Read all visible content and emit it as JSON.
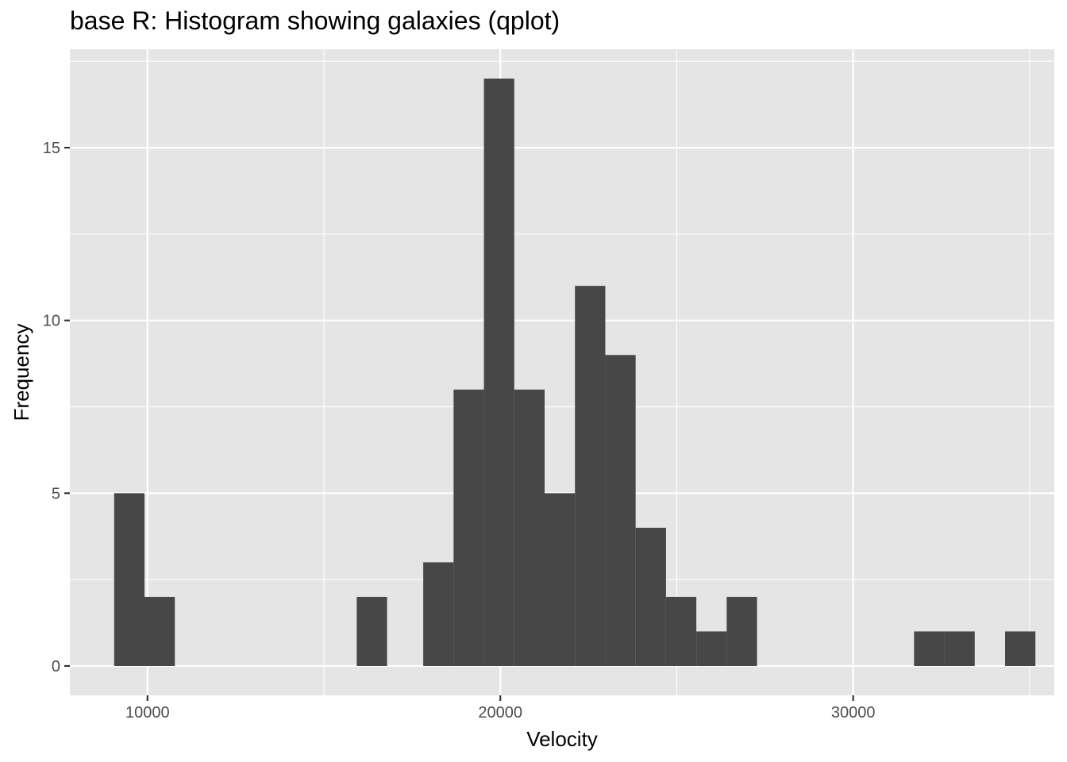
{
  "chart_data": {
    "type": "bar",
    "subtype": "histogram",
    "title": "base R: Histogram showing galaxies (qplot)",
    "xlabel": "Velocity",
    "ylabel": "Frequency",
    "xlim": [
      7800,
      35700
    ],
    "ylim": [
      -0.85,
      17.85
    ],
    "x_ticks": [
      10000,
      20000,
      30000
    ],
    "y_ticks": [
      0,
      5,
      10,
      15
    ],
    "grid": true,
    "legend": "none",
    "colors": {
      "panel_background": "#e5e5e5",
      "grid": "#ffffff",
      "bar_fill": "#474747",
      "tick_label": "#4d4d4d",
      "tick_mark": "#333333"
    },
    "bins": [
      {
        "x0": 9055,
        "x1": 9915,
        "count": 5
      },
      {
        "x0": 9915,
        "x1": 10775,
        "count": 2
      },
      {
        "x0": 15930,
        "x1": 16790,
        "count": 2
      },
      {
        "x0": 17815,
        "x1": 18675,
        "count": 3
      },
      {
        "x0": 18675,
        "x1": 19535,
        "count": 8
      },
      {
        "x0": 19535,
        "x1": 20395,
        "count": 17
      },
      {
        "x0": 20395,
        "x1": 21255,
        "count": 8
      },
      {
        "x0": 21255,
        "x1": 22115,
        "count": 5
      },
      {
        "x0": 22115,
        "x1": 22975,
        "count": 11
      },
      {
        "x0": 22975,
        "x1": 23835,
        "count": 9
      },
      {
        "x0": 23835,
        "x1": 24695,
        "count": 4
      },
      {
        "x0": 24695,
        "x1": 25555,
        "count": 2
      },
      {
        "x0": 25555,
        "x1": 26415,
        "count": 1
      },
      {
        "x0": 26415,
        "x1": 27275,
        "count": 2
      },
      {
        "x0": 31725,
        "x1": 32585,
        "count": 1
      },
      {
        "x0": 32585,
        "x1": 33445,
        "count": 1
      },
      {
        "x0": 34305,
        "x1": 35165,
        "count": 1
      }
    ]
  }
}
